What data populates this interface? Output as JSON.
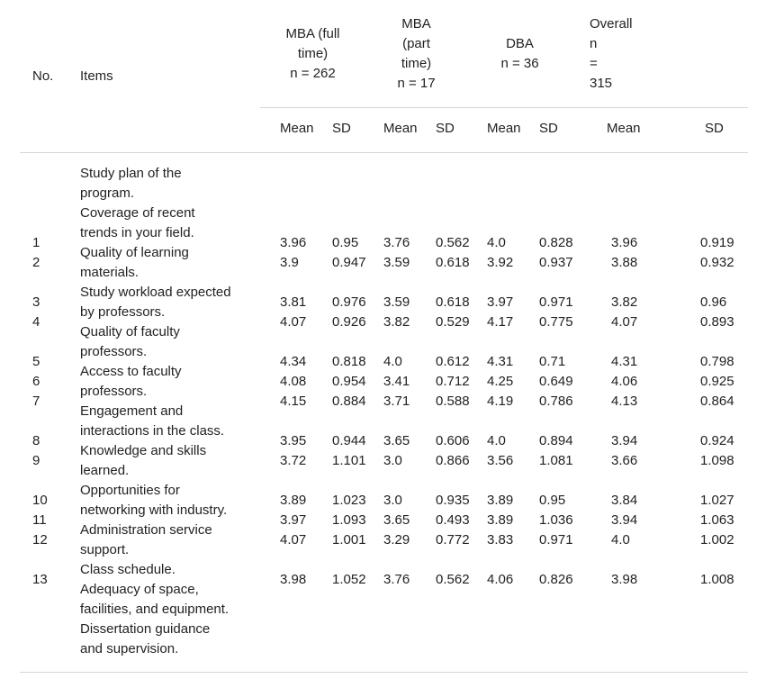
{
  "headers": {
    "no": "No.",
    "items": "Items",
    "groups": [
      {
        "lines": [
          "MBA (full",
          "time)",
          "n = 262"
        ]
      },
      {
        "lines": [
          "MBA",
          "(part",
          "time)",
          "n = 17"
        ]
      },
      {
        "lines": [
          "DBA",
          "n = 36"
        ]
      },
      {
        "lines": [
          "Overall",
          "n",
          "=",
          "315"
        ]
      }
    ],
    "sub": [
      "Mean",
      "SD",
      "Mean",
      "SD",
      "Mean",
      "SD",
      "Mean",
      "SD"
    ]
  },
  "item_lines": [
    "Study plan of the",
    "program.",
    "Coverage of recent",
    "trends in your field.",
    "Quality of learning",
    "materials.",
    "Study workload expected",
    "by professors.",
    "Quality of faculty",
    "professors.",
    "Access to faculty",
    "professors.",
    "Engagement and",
    "interactions in the class.",
    "Knowledge and skills",
    "learned.",
    "Opportunities for",
    "networking with industry.",
    "Administration service",
    "support.",
    "Class schedule.",
    "Adequacy of space,",
    "facilities, and equipment.",
    "Dissertation guidance",
    "and supervision."
  ],
  "rows": [
    {
      "no": "1",
      "v": [
        "3.96",
        "0.95",
        "3.76",
        "0.562",
        "4.0",
        "0.828",
        "3.96",
        "0.919"
      ]
    },
    {
      "no": "2",
      "v": [
        "3.9",
        "0.947",
        "3.59",
        "0.618",
        "3.92",
        "0.937",
        "3.88",
        "0.932"
      ]
    },
    {
      "no": "3",
      "v": [
        "3.81",
        "0.976",
        "3.59",
        "0.618",
        "3.97",
        "0.971",
        "3.82",
        "0.96"
      ]
    },
    {
      "no": "4",
      "v": [
        "4.07",
        "0.926",
        "3.82",
        "0.529",
        "4.17",
        "0.775",
        "4.07",
        "0.893"
      ]
    },
    {
      "no": "5",
      "v": [
        "4.34",
        "0.818",
        "4.0",
        "0.612",
        "4.31",
        "0.71",
        "4.31",
        "0.798"
      ]
    },
    {
      "no": "6",
      "v": [
        "4.08",
        "0.954",
        "3.41",
        "0.712",
        "4.25",
        "0.649",
        "4.06",
        "0.925"
      ]
    },
    {
      "no": "7",
      "v": [
        "4.15",
        "0.884",
        "3.71",
        "0.588",
        "4.19",
        "0.786",
        "4.13",
        "0.864"
      ]
    },
    {
      "no": "8",
      "v": [
        "3.95",
        "0.944",
        "3.65",
        "0.606",
        "4.0",
        "0.894",
        "3.94",
        "0.924"
      ]
    },
    {
      "no": "9",
      "v": [
        "3.72",
        "1.101",
        "3.0",
        "0.866",
        "3.56",
        "1.081",
        "3.66",
        "1.098"
      ]
    },
    {
      "no": "10",
      "v": [
        "3.89",
        "1.023",
        "3.0",
        "0.935",
        "3.89",
        "0.95",
        "3.84",
        "1.027"
      ]
    },
    {
      "no": "11",
      "v": [
        "3.97",
        "1.093",
        "3.65",
        "0.493",
        "3.89",
        "1.036",
        "3.94",
        "1.063"
      ]
    },
    {
      "no": "12",
      "v": [
        "4.07",
        "1.001",
        "3.29",
        "0.772",
        "3.83",
        "0.971",
        "4.0",
        "1.002"
      ]
    },
    {
      "no": "13",
      "v": [
        "3.98",
        "1.052",
        "3.76",
        "0.562",
        "4.06",
        "0.826",
        "3.98",
        "1.008"
      ]
    }
  ]
}
